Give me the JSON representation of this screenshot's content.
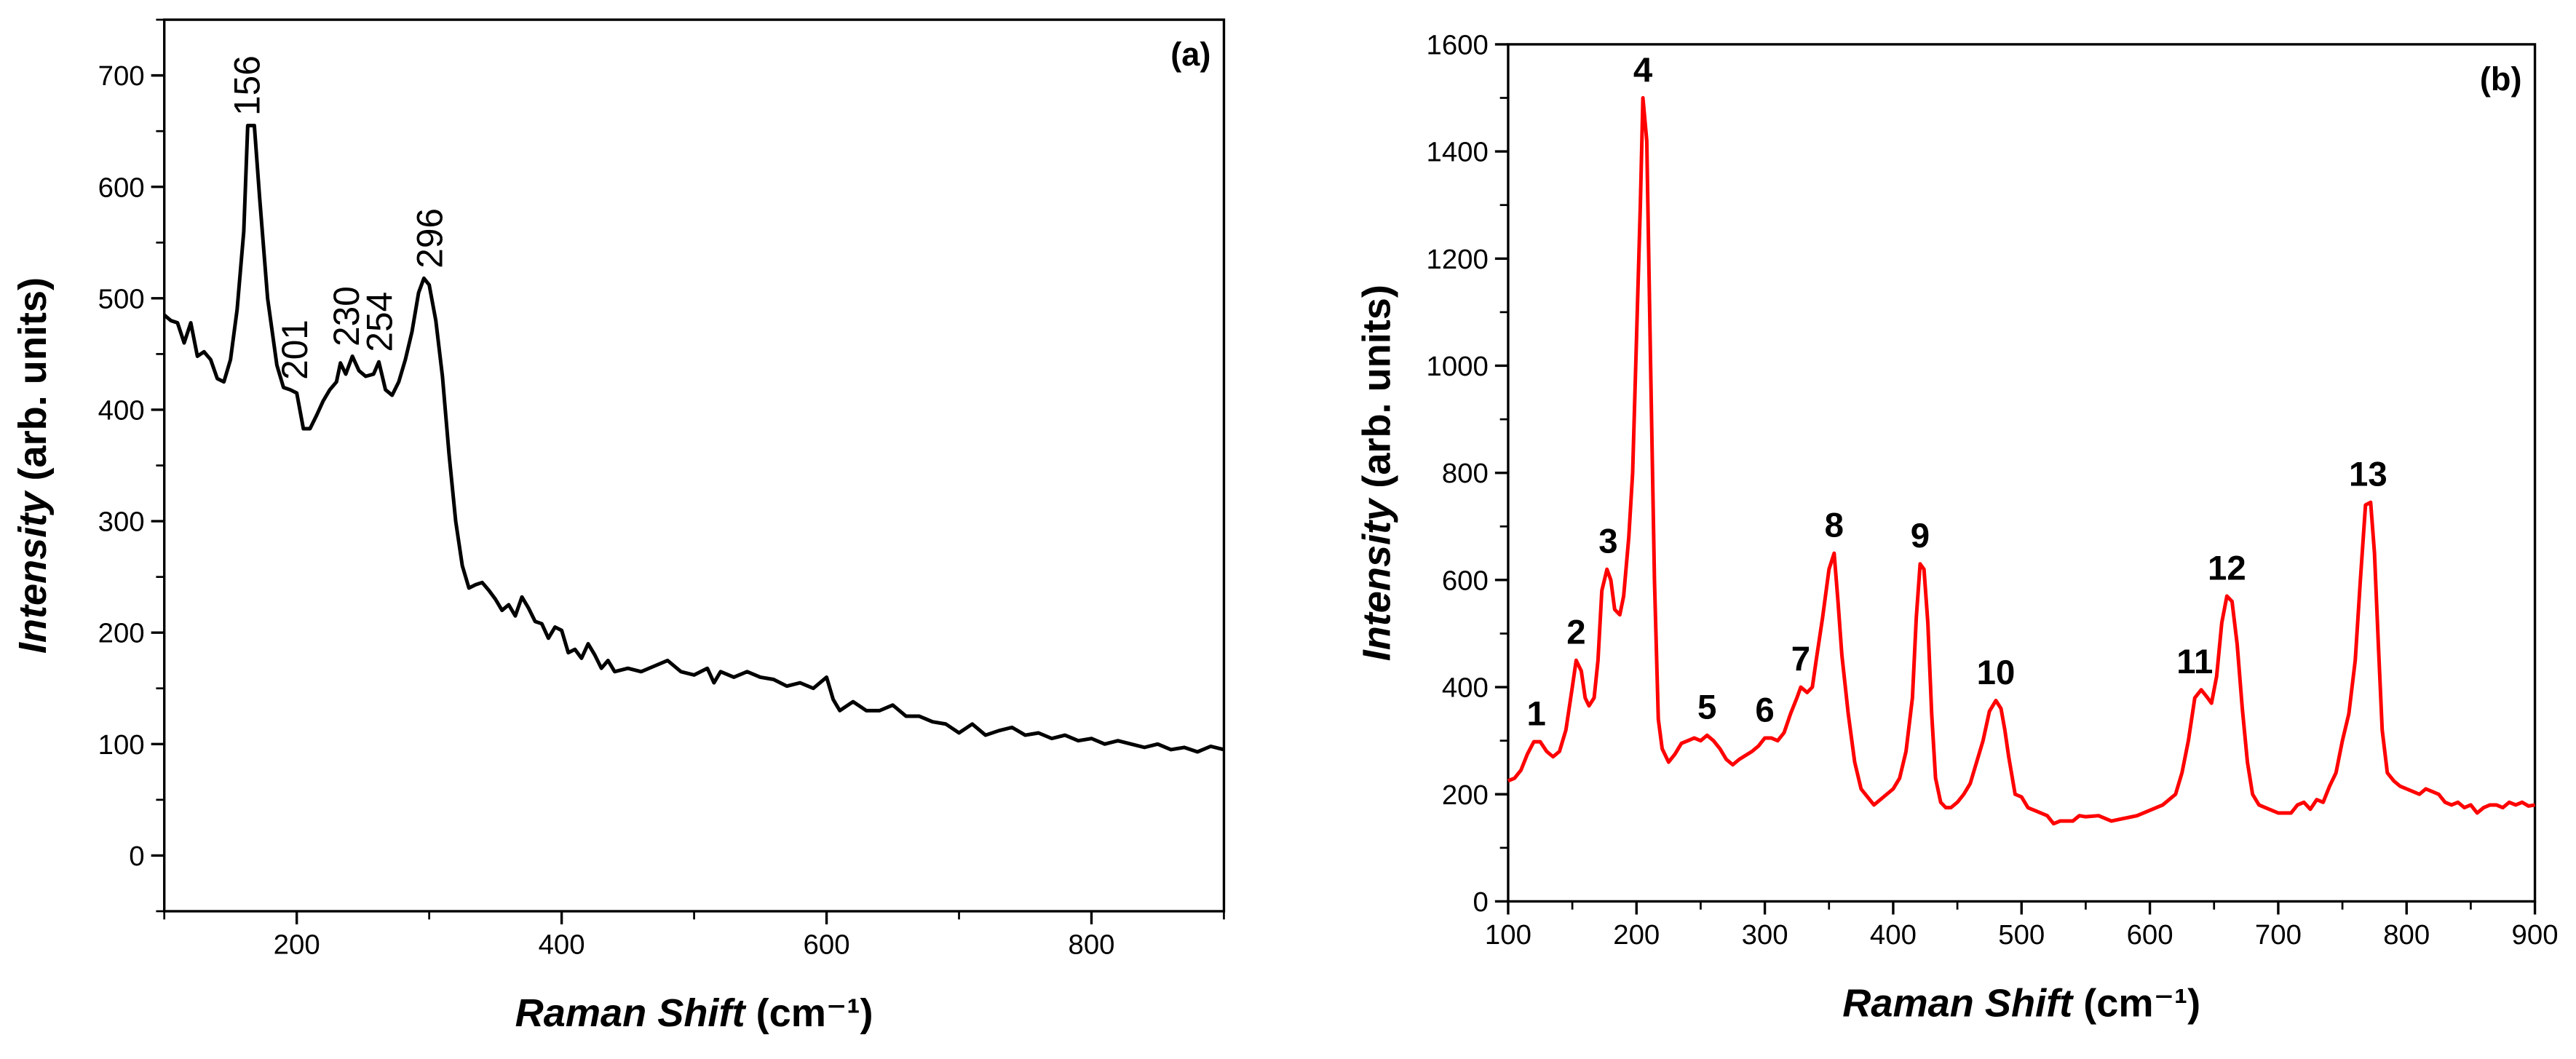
{
  "chart_data": [
    {
      "type": "line",
      "panel_label": "(a)",
      "xlabel": {
        "italic": "Raman Shift",
        "rest": "(cm⁻¹)"
      },
      "ylabel": {
        "italic": "Intensity",
        "rest": "(arb. units)"
      },
      "xlim": [
        100,
        900
      ],
      "ylim": [
        -50,
        750
      ],
      "xticks": [
        200,
        400,
        600,
        800
      ],
      "minor_xticks": [
        100,
        300,
        500,
        700,
        900
      ],
      "yticks": [
        0,
        100,
        200,
        300,
        400,
        500,
        600,
        700
      ],
      "minor_yticks": [
        -50,
        50,
        150,
        250,
        350,
        450,
        550,
        650,
        750
      ],
      "annotation_style": "rotated",
      "annotations": [
        {
          "text": "156",
          "x": 162
        },
        {
          "text": "201",
          "x": 198
        },
        {
          "text": "230",
          "x": 237
        },
        {
          "text": "254",
          "x": 262
        },
        {
          "text": "296",
          "x": 300
        }
      ],
      "x": [
        100,
        105,
        110,
        115,
        120,
        125,
        130,
        135,
        140,
        145,
        150,
        155,
        160,
        163,
        168,
        172,
        178,
        185,
        190,
        195,
        200,
        205,
        210,
        215,
        220,
        225,
        230,
        233,
        237,
        242,
        247,
        252,
        258,
        262,
        267,
        272,
        277,
        282,
        287,
        292,
        296,
        300,
        305,
        310,
        315,
        320,
        325,
        330,
        335,
        340,
        345,
        350,
        355,
        360,
        365,
        370,
        375,
        380,
        385,
        390,
        395,
        400,
        405,
        410,
        415,
        420,
        425,
        430,
        435,
        440,
        450,
        460,
        470,
        480,
        490,
        500,
        510,
        515,
        520,
        530,
        540,
        550,
        560,
        570,
        580,
        590,
        600,
        605,
        610,
        620,
        630,
        640,
        650,
        660,
        670,
        680,
        690,
        700,
        710,
        720,
        730,
        740,
        750,
        760,
        770,
        780,
        790,
        800,
        810,
        820,
        830,
        840,
        850,
        860,
        870,
        880,
        890,
        900
      ],
      "series": [
        {
          "color": "#000000",
          "values": [
            485,
            480,
            478,
            460,
            478,
            448,
            452,
            445,
            428,
            425,
            445,
            490,
            560,
            655,
            655,
            590,
            500,
            440,
            420,
            418,
            415,
            383,
            383,
            395,
            408,
            418,
            425,
            442,
            432,
            448,
            435,
            430,
            432,
            443,
            418,
            413,
            425,
            445,
            470,
            505,
            518,
            512,
            480,
            430,
            360,
            300,
            260,
            240,
            243,
            245,
            238,
            230,
            220,
            225,
            215,
            232,
            222,
            210,
            208,
            195,
            205,
            202,
            182,
            185,
            177,
            190,
            180,
            168,
            175,
            165,
            168,
            165,
            170,
            175,
            165,
            162,
            168,
            155,
            165,
            160,
            165,
            160,
            158,
            152,
            155,
            150,
            160,
            140,
            130,
            138,
            130,
            130,
            135,
            125,
            125,
            120,
            118,
            110,
            118,
            108,
            112,
            115,
            108,
            110,
            105,
            108,
            103,
            105,
            100,
            103,
            100,
            97,
            100,
            95,
            97,
            93,
            98,
            95
          ]
        }
      ]
    },
    {
      "type": "line",
      "panel_label": "(b)",
      "xlabel": {
        "italic": "Raman Shift",
        "rest": "(cm⁻¹)"
      },
      "ylabel": {
        "italic": "Intensity",
        "rest": "(arb. units)"
      },
      "xlim": [
        100,
        900
      ],
      "ylim": [
        0,
        1600
      ],
      "xticks": [
        100,
        200,
        300,
        400,
        500,
        600,
        700,
        800,
        900
      ],
      "minor_xticks": [
        150,
        250,
        350,
        450,
        550,
        650,
        750,
        850
      ],
      "yticks": [
        0,
        200,
        400,
        600,
        800,
        1000,
        1200,
        1400,
        1600
      ],
      "minor_yticks": [
        100,
        300,
        500,
        700,
        900,
        1100,
        1300,
        1500
      ],
      "annotation_style": "bold",
      "annotations": [
        {
          "text": "1",
          "x": 122
        },
        {
          "text": "2",
          "x": 153
        },
        {
          "text": "3",
          "x": 178
        },
        {
          "text": "4",
          "x": 205
        },
        {
          "text": "5",
          "x": 255
        },
        {
          "text": "6",
          "x": 300
        },
        {
          "text": "7",
          "x": 328
        },
        {
          "text": "8",
          "x": 354
        },
        {
          "text": "9",
          "x": 421
        },
        {
          "text": "10",
          "x": 480
        },
        {
          "text": "11",
          "x": 635
        },
        {
          "text": "12",
          "x": 660
        },
        {
          "text": "13",
          "x": 770
        }
      ],
      "x": [
        100,
        105,
        110,
        115,
        120,
        125,
        130,
        135,
        140,
        145,
        150,
        153,
        157,
        160,
        163,
        167,
        170,
        173,
        177,
        180,
        183,
        187,
        190,
        194,
        197,
        200,
        203,
        205,
        208,
        211,
        214,
        217,
        220,
        225,
        230,
        235,
        240,
        245,
        250,
        255,
        260,
        265,
        270,
        275,
        280,
        290,
        295,
        300,
        305,
        310,
        315,
        320,
        325,
        328,
        333,
        337,
        340,
        345,
        350,
        354,
        357,
        360,
        365,
        370,
        375,
        380,
        385,
        390,
        400,
        405,
        410,
        415,
        418,
        421,
        424,
        427,
        430,
        433,
        437,
        441,
        445,
        450,
        455,
        460,
        465,
        470,
        475,
        480,
        484,
        487,
        490,
        495,
        500,
        505,
        510,
        520,
        525,
        530,
        540,
        545,
        550,
        560,
        570,
        580,
        590,
        600,
        610,
        620,
        625,
        630,
        635,
        640,
        645,
        648,
        652,
        656,
        660,
        664,
        668,
        672,
        676,
        680,
        685,
        690,
        700,
        710,
        715,
        720,
        725,
        730,
        735,
        740,
        745,
        750,
        755,
        760,
        764,
        768,
        772,
        775,
        778,
        781,
        785,
        790,
        795,
        800,
        805,
        810,
        815,
        820,
        825,
        830,
        835,
        840,
        845,
        850,
        855,
        860,
        865,
        870,
        875,
        880,
        885,
        890,
        895,
        900
      ],
      "series": [
        {
          "color": "#ff0000",
          "values": [
            225,
            230,
            245,
            275,
            298,
            298,
            280,
            270,
            280,
            320,
            400,
            450,
            430,
            380,
            365,
            380,
            450,
            580,
            620,
            600,
            545,
            535,
            570,
            680,
            800,
            1050,
            1300,
            1500,
            1420,
            1000,
            600,
            340,
            285,
            260,
            275,
            295,
            300,
            305,
            300,
            310,
            300,
            285,
            265,
            255,
            265,
            280,
            290,
            305,
            305,
            300,
            315,
            350,
            380,
            400,
            390,
            400,
            450,
            530,
            620,
            650,
            560,
            460,
            350,
            260,
            210,
            195,
            180,
            190,
            210,
            230,
            280,
            380,
            530,
            630,
            620,
            520,
            350,
            230,
            185,
            175,
            175,
            185,
            200,
            220,
            260,
            300,
            355,
            375,
            360,
            320,
            270,
            200,
            195,
            175,
            170,
            160,
            145,
            150,
            150,
            160,
            158,
            160,
            150,
            155,
            160,
            170,
            180,
            200,
            240,
            300,
            380,
            395,
            380,
            370,
            420,
            520,
            570,
            560,
            480,
            360,
            260,
            200,
            180,
            175,
            165,
            165,
            180,
            185,
            172,
            190,
            185,
            215,
            240,
            300,
            350,
            450,
            600,
            740,
            745,
            650,
            480,
            320,
            240,
            225,
            215,
            210,
            205,
            200,
            210,
            205,
            200,
            185,
            180,
            185,
            175,
            180,
            165,
            175,
            180,
            180,
            175,
            185,
            180,
            185,
            178,
            180
          ]
        }
      ]
    }
  ]
}
